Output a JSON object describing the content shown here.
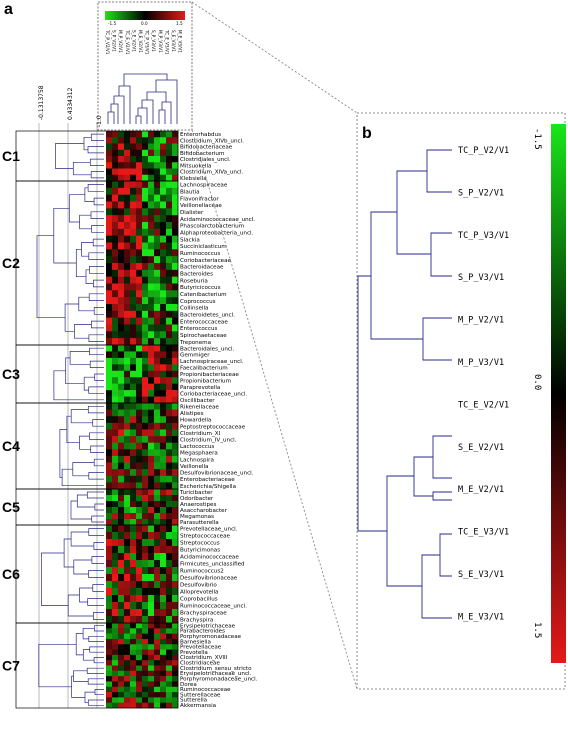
{
  "panel_a": {
    "label": "a",
    "thresholds": [
      "-0.1313758",
      "0.4334312",
      "-1.0"
    ],
    "legend_ticks": [
      "-1.5",
      "0.0",
      "1.5"
    ],
    "sample_columns": [
      "TC_P_V2/V1",
      "S_P_V2/V1",
      "M_P_V2/V1",
      "TC_E_V2/V1",
      "S_E_V2/V1",
      "M_E_V2/V1",
      "TC_P_V3/V1",
      "S_P_V3/V1",
      "M_P_V3/V1",
      "TC_E_V3/V1",
      "S_E_V3/V1",
      "M_E_V3/V1"
    ],
    "clusters": [
      {
        "label": "C1",
        "taxa": [
          "Enterorhabdus",
          "Clostridium_XIVb_uncl.",
          "Bifidobacteriaceae",
          "Bifidobacterium",
          "Clostridiales_uncl.",
          "Mitsuokella",
          "Clostridium_XIVa_uncl.",
          "Klebsiella"
        ]
      },
      {
        "label": "C2",
        "taxa": [
          "Lachnospiraceae",
          "Blautia",
          "Flavonifractor",
          "Veillonellaceae",
          "Dialister",
          "Acidaminococcaceae_uncl.",
          "Phascolarctobacterium",
          "Alphaproteobacteria_uncl.",
          "Slackia",
          "Succiniclasticum",
          "Ruminococcus",
          "Coriobacteriaceae",
          "Bacteroidaceae",
          "Bacteroides",
          "Roseburia",
          "Butyricicoccus",
          "Catenibacterium",
          "Coprococcus",
          "Collinsella",
          "Bacteroidetes_uncl.",
          "Enterococcaceae",
          "Enterococcus",
          "Spirochaetaceae",
          "Treponema"
        ]
      },
      {
        "label": "C3",
        "taxa": [
          "Bacteroidales_uncl.",
          "Gemmiger",
          "Lachnospiraceae_uncl.",
          "Faecalibacterium",
          "Propionibacteriaceae",
          "Propionibacterium",
          "Paraprevotella",
          "Coriobacteriaceae_uncl.",
          "Oscillibacter"
        ]
      },
      {
        "label": "C4",
        "taxa": [
          "Rikenellaceae",
          "Alistipes",
          "Howardella",
          "Peptostreptococcaceae",
          "Clostridium_XI",
          "Clostridium_IV_uncl.",
          "Lactococcus",
          "Megasphaera",
          "Lachnospira",
          "Veillonella",
          "Desulfovibrionaceae_uncl.",
          "Enterobacteriaceae",
          "Escherichia/Shigella"
        ]
      },
      {
        "label": "C5",
        "taxa": [
          "Turicibacter",
          "Odoribacter",
          "Anaerostipes",
          "Asaccharobacter",
          "Megamonas",
          "Parasutterella"
        ]
      },
      {
        "label": "C6",
        "taxa": [
          "Prevotellaceae_uncl.",
          "Streptococcaceae",
          "Streptococcus",
          "Butyricimonas",
          "Acidaminococcaceae",
          "Firmicutes_unclassified",
          "Ruminococcus2",
          "Desulfovibrionaceae",
          "Desulfovibrio",
          "Alloprevotella",
          "Coprobacillus",
          "Ruminococcaceae_uncl.",
          "Brachyspiraceae",
          "Brachyspira"
        ]
      },
      {
        "label": "C7",
        "taxa": [
          "Erysipelotrichaceae",
          "Parabacteroides",
          "Porphyromonadaceae",
          "Barnesiella",
          "Prevotellaceae",
          "Prevotella",
          "Clostridium_XVIII",
          "Clostridiaceae",
          "Clostridium_sensu_stricto",
          "Erysipelotrichaceae_uncl.",
          "Porphyromonadaceae_uncl.",
          "Dorea",
          "Ruminococcaceae",
          "Sutterellaceae",
          "Sutterella",
          "Akkermansia"
        ]
      }
    ]
  },
  "panel_b": {
    "label": "b",
    "legend_ticks": [
      "-1.5",
      "0.0",
      "1.5"
    ],
    "samples": [
      "TC_P_V2/V1",
      "S_P_V2/V1",
      "TC_P_V3/V1",
      "S_P_V3/V1",
      "M_P_V2/V1",
      "M_P_V3/V1",
      "TC_E_V2/V1",
      "S_E_V2/V1",
      "M_E_V2/V1",
      "TC_E_V3/V1",
      "S_E_V3/V1",
      "M_E_V3/V1"
    ]
  },
  "colors": {
    "low": "#19e619",
    "mid": "#000000",
    "high": "#e61919",
    "tree": "#2a2a8a",
    "box": "#888888"
  }
}
